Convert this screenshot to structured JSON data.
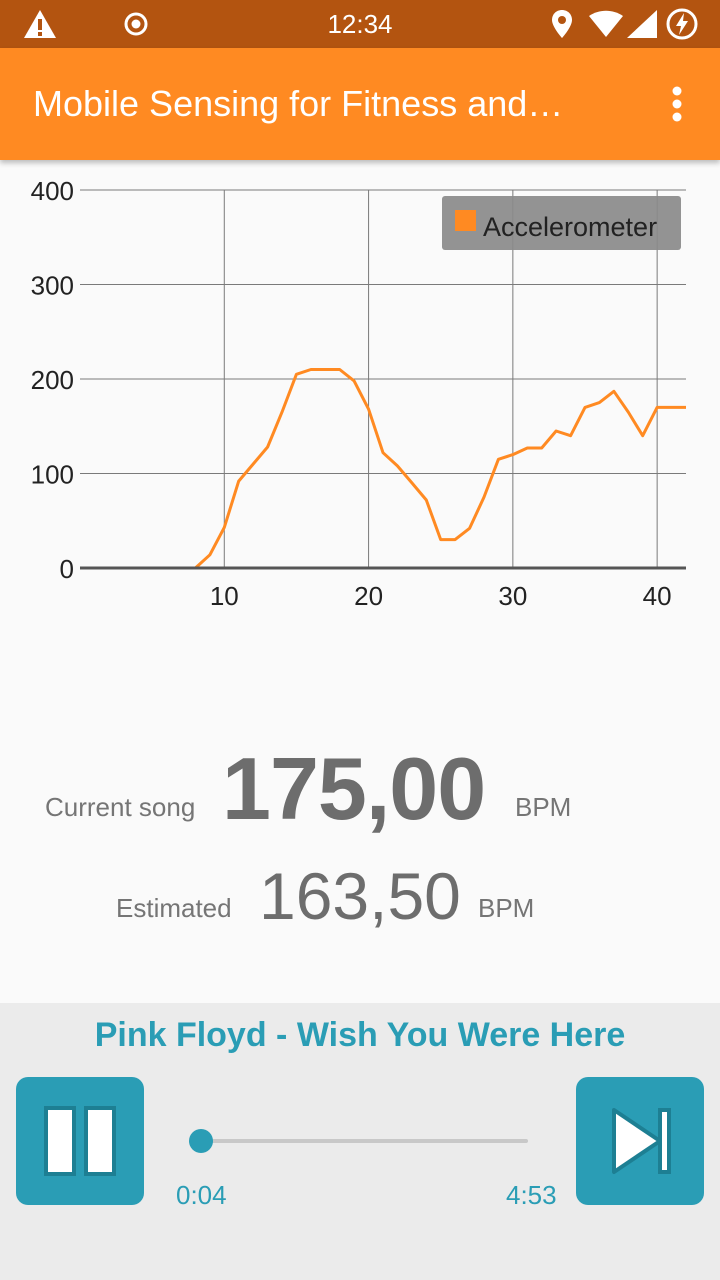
{
  "status_bar": {
    "time": "12:34",
    "icons": [
      "warning-icon",
      "record-icon",
      "location-icon",
      "wifi-icon",
      "signal-icon",
      "battery-charging-icon"
    ]
  },
  "app_bar": {
    "title": "Mobile Sensing for Fitness and…",
    "menu_icon": "more-vert-icon"
  },
  "chart_data": {
    "type": "line",
    "title": "",
    "xlabel": "",
    "ylabel": "",
    "xlim": [
      0,
      42
    ],
    "ylim": [
      0,
      400
    ],
    "x_ticks": [
      10,
      20,
      30,
      40
    ],
    "y_ticks": [
      0,
      100,
      200,
      300,
      400
    ],
    "grid": true,
    "legend_position": "top-right",
    "series": [
      {
        "name": "Accelerometer",
        "color": "#ff8a22",
        "x": [
          0,
          1,
          2,
          3,
          4,
          5,
          6,
          7,
          8,
          9,
          10,
          11,
          12,
          13,
          14,
          15,
          16,
          17,
          18,
          19,
          20,
          21,
          22,
          23,
          24,
          25,
          26,
          27,
          28,
          29,
          30,
          31,
          32,
          33,
          34,
          35,
          36,
          37,
          38,
          39,
          40,
          41,
          42
        ],
        "y": [
          0,
          0,
          0,
          0,
          0,
          0,
          0,
          0,
          0,
          14,
          43,
          92,
          110,
          128,
          165,
          205,
          210,
          210,
          210,
          198,
          168,
          122,
          108,
          90,
          72,
          30,
          30,
          42,
          75,
          115,
          120,
          127,
          127,
          145,
          140,
          170,
          175,
          187,
          165,
          140,
          170,
          170,
          170
        ]
      }
    ]
  },
  "bpm": {
    "current_label": "Current song",
    "current_value": "175,00",
    "current_unit": "BPM",
    "estimated_label": "Estimated",
    "estimated_value": "163,50",
    "estimated_unit": "BPM"
  },
  "player": {
    "song_title": "Pink Floyd - Wish You Were Here",
    "elapsed": "0:04",
    "duration": "4:53",
    "progress": 0.014,
    "pause_icon": "pause-icon",
    "next_icon": "skip-next-icon",
    "accent_color": "#2a9db5"
  }
}
